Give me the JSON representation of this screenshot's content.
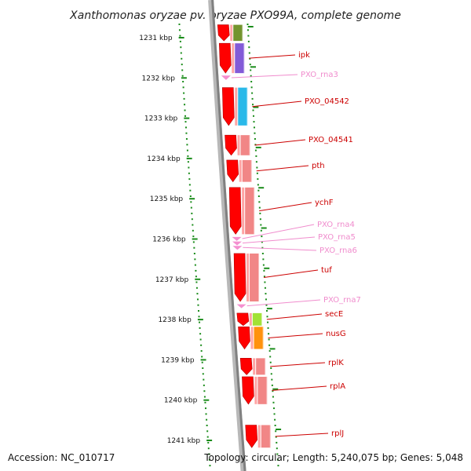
{
  "title": "Xanthomonas oryzae pv. oryzae PXO99A, complete genome",
  "footer": {
    "accession": "Accession: NC_010717",
    "summary": "Topology: circular; Length: 5,240,075 bp; Genes: 5,048"
  },
  "colors": {
    "cds": "#ff0000",
    "rna": "#f48fd0",
    "gene_label": "#cc0000",
    "rna_label": "#f08ccd",
    "tick": "#1a8c1a",
    "backbone": "#808080"
  },
  "kbp_ticks": [
    {
      "label": "1231 kbp",
      "value": 1231
    },
    {
      "label": "1232 kbp",
      "value": 1232
    },
    {
      "label": "1233 kbp",
      "value": 1233
    },
    {
      "label": "1234 kbp",
      "value": 1234
    },
    {
      "label": "1235 kbp",
      "value": 1235
    },
    {
      "label": "1236 kbp",
      "value": 1236
    },
    {
      "label": "1237 kbp",
      "value": 1237
    },
    {
      "label": "1238 kbp",
      "value": 1238
    },
    {
      "label": "1239 kbp",
      "value": 1239
    },
    {
      "label": "1240 kbp",
      "value": 1240
    },
    {
      "label": "1241 kbp",
      "value": 1241
    }
  ],
  "features": [
    {
      "type": "cds",
      "label": "",
      "start": 1230.68,
      "end": 1231.08,
      "cog": "#6b8e23"
    },
    {
      "type": "cds",
      "label": "ipk",
      "start": 1231.14,
      "end": 1231.88,
      "cog": "#7b52d6"
    },
    {
      "type": "rna",
      "label": "PXO_rna3",
      "start": 1231.94,
      "end": 1232.05
    },
    {
      "type": "cds",
      "label": "PXO_04542",
      "start": 1232.24,
      "end": 1233.18,
      "cog": "#1fb5e8"
    },
    {
      "type": "cds",
      "label": "PXO_04541",
      "start": 1233.42,
      "end": 1233.92,
      "cog": "#f08080"
    },
    {
      "type": "cds",
      "label": "pth",
      "start": 1234.04,
      "end": 1234.58,
      "cog": "#f08080"
    },
    {
      "type": "cds",
      "label": "ychF",
      "start": 1234.72,
      "end": 1235.88,
      "cog": "#f08080"
    },
    {
      "type": "rna",
      "label": "PXO_rna4",
      "start": 1235.95,
      "end": 1236.03
    },
    {
      "type": "rna",
      "label": "PXO_rna5",
      "start": 1236.06,
      "end": 1236.14
    },
    {
      "type": "rna",
      "label": "PXO_rna6",
      "start": 1236.17,
      "end": 1236.25
    },
    {
      "type": "cds",
      "label": "tuf",
      "start": 1236.36,
      "end": 1237.55,
      "cog": "#f08080"
    },
    {
      "type": "rna",
      "label": "PXO_rna7",
      "start": 1237.62,
      "end": 1237.7
    },
    {
      "type": "cds",
      "label": "secE",
      "start": 1237.84,
      "end": 1238.15,
      "cog": "#9ce02a"
    },
    {
      "type": "cds",
      "label": "nusG",
      "start": 1238.18,
      "end": 1238.73,
      "cog": "#ff8c00"
    },
    {
      "type": "cds",
      "label": "rplK",
      "start": 1238.96,
      "end": 1239.37,
      "cog": "#f08080"
    },
    {
      "type": "cds",
      "label": "rplA",
      "start": 1239.42,
      "end": 1240.1,
      "cog": "#f08080"
    },
    {
      "type": "cds",
      "label": "rplJ",
      "start": 1240.62,
      "end": 1241.18,
      "cog": "#f08080"
    }
  ]
}
